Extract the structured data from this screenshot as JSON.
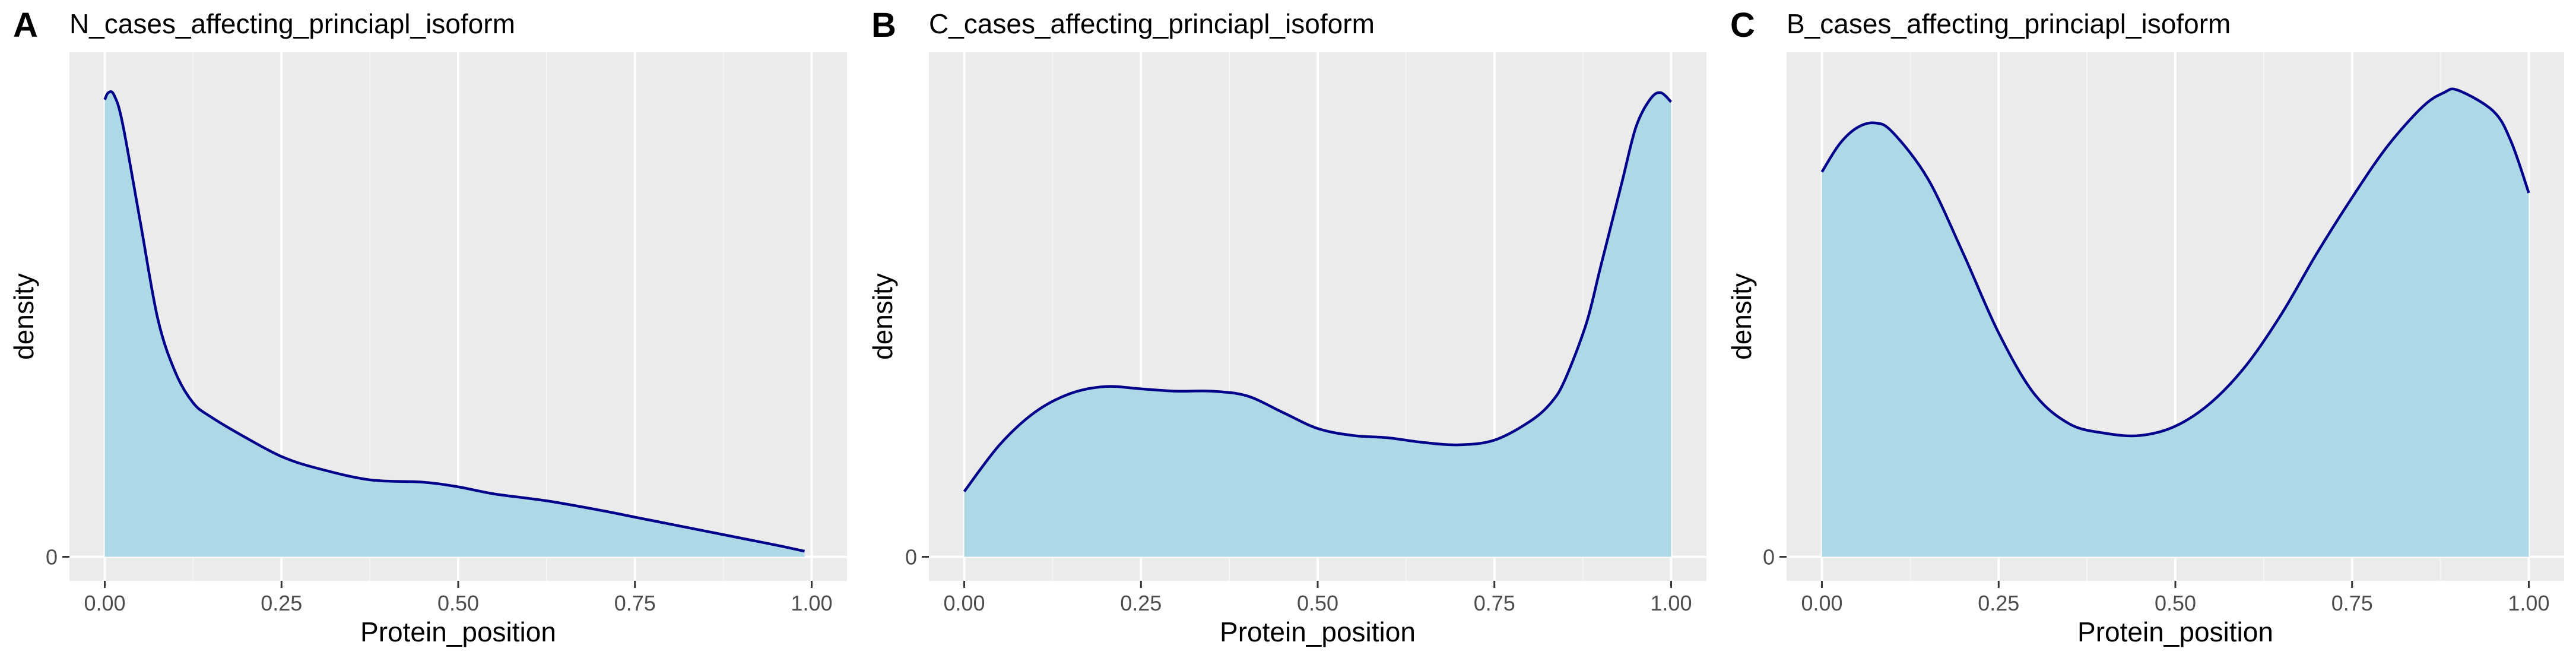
{
  "colors": {
    "panel_background": "#ebebeb",
    "grid_major": "#ffffff",
    "grid_minor": "#f5f5f5",
    "fill": "#add8e6",
    "line": "#00008b",
    "text": "#000000",
    "tick_text": "#4d4d4d"
  },
  "chart_data": [
    {
      "type": "area",
      "tag": "A",
      "title": "N_cases_affecting_princiapl_isoform",
      "xlabel": "Protein_position",
      "ylabel": "density",
      "xlim": [
        0,
        1
      ],
      "ylim": [
        0,
        1.03
      ],
      "x_ticks": [
        0,
        0.25,
        0.5,
        0.75,
        1
      ],
      "x_tick_labels": [
        "0.00",
        "0.25",
        "0.50",
        "0.75",
        "1.00"
      ],
      "y_ticks": [
        0
      ],
      "y_tick_labels": [
        "0"
      ],
      "grid": true,
      "legend": "none",
      "x": [
        0.0,
        0.005,
        0.013,
        0.025,
        0.05,
        0.075,
        0.1,
        0.125,
        0.15,
        0.2,
        0.25,
        0.3,
        0.375,
        0.45,
        0.5,
        0.55,
        0.625,
        0.7,
        0.75,
        0.8,
        0.85,
        0.9,
        0.95,
        0.99
      ],
      "y": [
        0.98,
        0.995,
        0.99,
        0.93,
        0.72,
        0.51,
        0.395,
        0.33,
        0.3,
        0.255,
        0.215,
        0.19,
        0.165,
        0.16,
        0.15,
        0.135,
        0.12,
        0.1,
        0.085,
        0.07,
        0.055,
        0.04,
        0.025,
        0.012
      ]
    },
    {
      "type": "area",
      "tag": "B",
      "title": "C_cases_affecting_princiapl_isoform",
      "xlabel": "Protein_position",
      "ylabel": "density",
      "xlim": [
        0,
        1
      ],
      "ylim": [
        0,
        1.03
      ],
      "x_ticks": [
        0,
        0.25,
        0.5,
        0.75,
        1
      ],
      "x_tick_labels": [
        "0.00",
        "0.25",
        "0.50",
        "0.75",
        "1.00"
      ],
      "y_ticks": [
        0
      ],
      "y_tick_labels": [
        "0"
      ],
      "grid": true,
      "legend": "none",
      "x": [
        0.0,
        0.05,
        0.1,
        0.15,
        0.2,
        0.25,
        0.3,
        0.35,
        0.4,
        0.45,
        0.5,
        0.55,
        0.6,
        0.65,
        0.7,
        0.75,
        0.8,
        0.83,
        0.85,
        0.88,
        0.9,
        0.93,
        0.95,
        0.97,
        0.985,
        1.0
      ],
      "y": [
        0.14,
        0.24,
        0.31,
        0.35,
        0.365,
        0.36,
        0.355,
        0.355,
        0.345,
        0.31,
        0.275,
        0.26,
        0.255,
        0.245,
        0.24,
        0.25,
        0.29,
        0.33,
        0.38,
        0.5,
        0.62,
        0.8,
        0.92,
        0.98,
        0.995,
        0.975
      ]
    },
    {
      "type": "area",
      "tag": "C",
      "title": "B_cases_affecting_princiapl_isoform",
      "xlabel": "Protein_position",
      "ylabel": "density",
      "xlim": [
        0,
        1
      ],
      "ylim": [
        0,
        1.03
      ],
      "x_ticks": [
        0,
        0.25,
        0.5,
        0.75,
        1
      ],
      "x_tick_labels": [
        "0.00",
        "0.25",
        "0.50",
        "0.75",
        "1.00"
      ],
      "y_ticks": [
        0
      ],
      "y_tick_labels": [
        "0"
      ],
      "grid": true,
      "legend": "none",
      "x": [
        0.0,
        0.025,
        0.05,
        0.075,
        0.1,
        0.15,
        0.2,
        0.25,
        0.3,
        0.35,
        0.4,
        0.45,
        0.5,
        0.55,
        0.6,
        0.65,
        0.7,
        0.75,
        0.8,
        0.85,
        0.88,
        0.9,
        0.95,
        0.975,
        1.0
      ],
      "y": [
        0.825,
        0.885,
        0.92,
        0.93,
        0.91,
        0.81,
        0.65,
        0.48,
        0.35,
        0.285,
        0.265,
        0.26,
        0.28,
        0.33,
        0.41,
        0.52,
        0.65,
        0.77,
        0.88,
        0.965,
        0.995,
        1.0,
        0.955,
        0.89,
        0.78
      ]
    }
  ]
}
